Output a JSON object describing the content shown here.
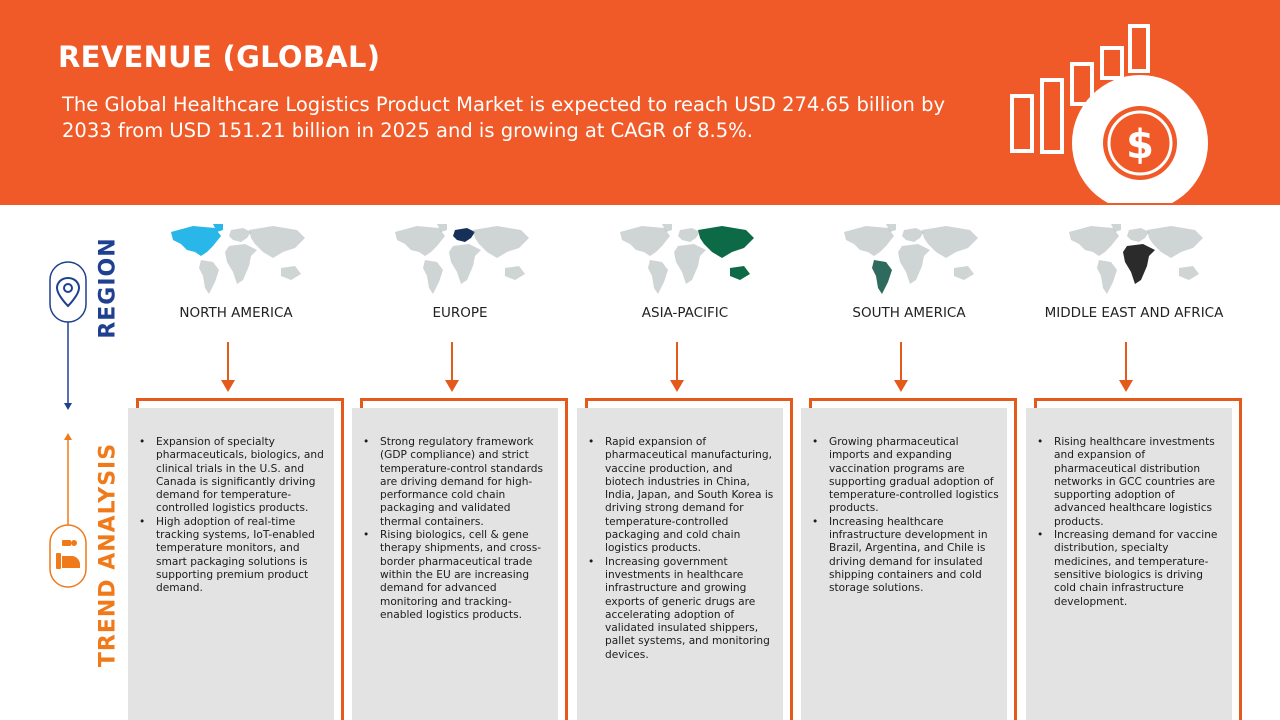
{
  "header": {
    "title": "REVENUE (GLOBAL)",
    "summary": "The Global Healthcare Logistics Product Market is expected to reach USD 274.65 billion by 2033 from USD 151.21 billion in 2025 and is growing at CAGR of 8.5%.",
    "icon": "revenue-chart-dollar-icon"
  },
  "side": {
    "region_label": "REGION",
    "trend_label": "TREND ANALYSIS",
    "region_icon": "location-pin-icon",
    "trend_icon": "hand-money-icon"
  },
  "colors": {
    "banner": "#f05a28",
    "region_text": "#1f3f91",
    "trend_text": "#f07a1a",
    "arrow": "#e35a1a",
    "card": "#e3e3e3"
  },
  "regions": [
    {
      "name": "NORTH AMERICA",
      "highlight": "#29b6e8",
      "bullets": [
        "Expansion of specialty pharmaceuticals, biologics, and clinical trials in the U.S. and Canada is significantly driving demand for temperature-controlled logistics products.",
        "High adoption of real-time tracking systems, IoT-enabled temperature monitors, and smart packaging solutions is supporting premium product demand."
      ]
    },
    {
      "name": "EUROPE",
      "highlight": "#16305a",
      "bullets": [
        "Strong regulatory framework (GDP compliance) and strict temperature-control standards are driving demand for high-performance cold chain packaging and validated thermal containers.",
        "Rising biologics, cell & gene therapy shipments, and cross-border pharmaceutical trade within the EU are increasing demand for advanced monitoring and tracking-enabled logistics products."
      ]
    },
    {
      "name": "ASIA-PACIFIC",
      "highlight": "#0c6b46",
      "bullets": [
        "Rapid expansion of pharmaceutical manufacturing, vaccine production, and biotech industries in China, India, Japan, and South Korea is driving strong demand for temperature-controlled packaging and cold chain logistics products.",
        "Increasing government investments in healthcare infrastructure and growing exports of generic drugs are accelerating adoption of validated insulated shippers, pallet systems, and monitoring devices."
      ]
    },
    {
      "name": "SOUTH AMERICA",
      "highlight": "#2f6a5e",
      "bullets": [
        "Growing pharmaceutical imports and expanding vaccination programs are supporting gradual adoption of temperature-controlled logistics products.",
        "Increasing healthcare infrastructure development in Brazil, Argentina, and Chile is driving demand for insulated shipping containers and cold storage solutions."
      ]
    },
    {
      "name": "MIDDLE EAST AND AFRICA",
      "highlight": "#2b2b2b",
      "bullets": [
        "Rising healthcare investments and expansion of pharmaceutical distribution networks in GCC countries are supporting adoption of advanced healthcare logistics products.",
        "Increasing demand for vaccine distribution, specialty medicines, and temperature-sensitive biologics is driving cold chain infrastructure development."
      ]
    }
  ]
}
